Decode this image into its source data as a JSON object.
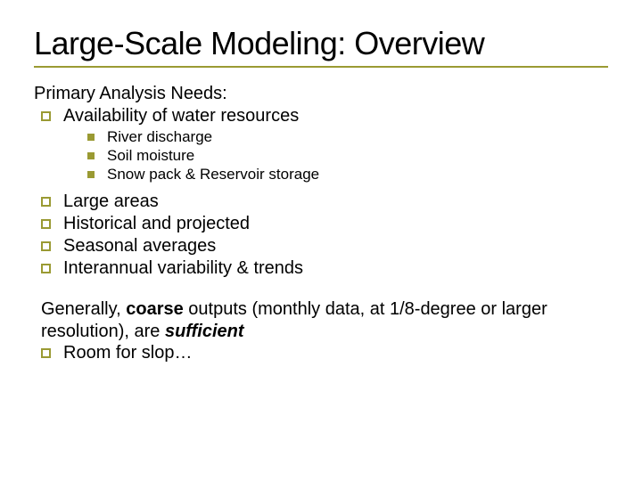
{
  "slide": {
    "title": "Large-Scale Modeling: Overview",
    "title_fontsize": 36,
    "title_color": "#000000",
    "rule_color": "#9a9a33",
    "body_color": "#000000",
    "body_fontsize_l0": 20,
    "body_fontsize_l2": 17,
    "bullet_l1_border_color": "#9a9a33",
    "bullet_l2_fill_color": "#9a9a33",
    "background_color": "#ffffff",
    "intro1": "Primary Analysis Needs:",
    "l1_items_a": [
      "Availability of water resources"
    ],
    "l2_items": [
      "River discharge",
      "Soil moisture",
      "Snow pack & Reservoir storage"
    ],
    "l1_items_b": [
      "Large areas",
      "Historical and projected",
      "Seasonal averages",
      "Interannual variability & trends"
    ],
    "para2_pre": "Generally, ",
    "para2_bold1": "coarse",
    "para2_mid": " outputs (monthly data, at 1/8-degree or larger resolution), are ",
    "para2_bolditalic": "sufficient",
    "l1_items_c": [
      "Room for slop…"
    ]
  }
}
